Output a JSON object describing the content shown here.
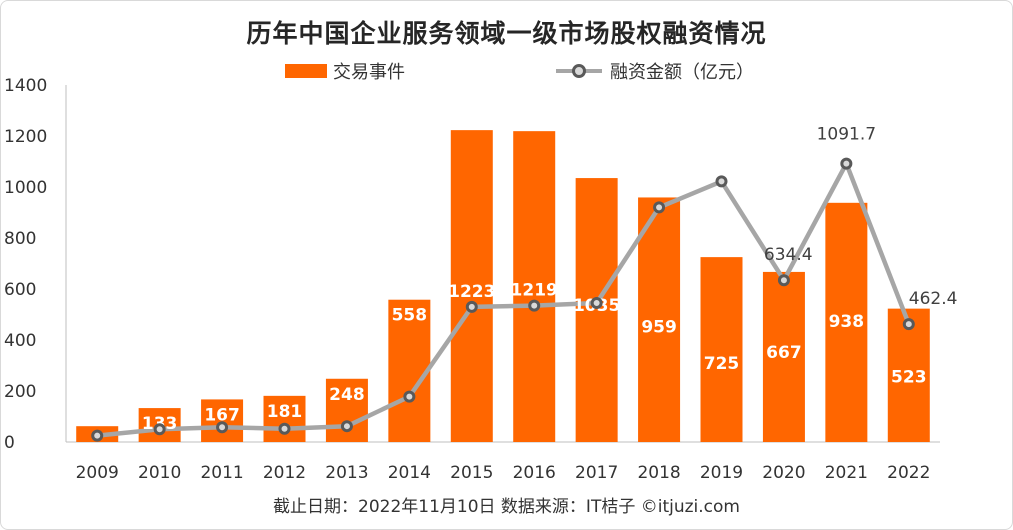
{
  "title": "历年中国企业服务领域一级市场股权融资情况",
  "footer": "截止日期：2022年11月10日   数据来源：IT桔子 ©itjuzi.com",
  "colors": {
    "bar": "#ff6600",
    "line": "#a6a6a6",
    "marker_edge": "#595959",
    "marker_fill": "#d9d9d9",
    "axis": "#bfbfbf"
  },
  "chart_data": {
    "type": "bar",
    "title": "历年中国企业服务领域一级市场股权融资情况",
    "categories": [
      "2009",
      "2010",
      "2011",
      "2012",
      "2013",
      "2014",
      "2015",
      "2016",
      "2017",
      "2018",
      "2019",
      "2020",
      "2021",
      "2022"
    ],
    "ylim": [
      0,
      1400
    ],
    "yticks": [
      "0",
      "200",
      "400",
      "600",
      "800",
      "1000",
      "1200",
      "1400"
    ],
    "legend_position": "top",
    "grid": false,
    "series": [
      {
        "name": "交易事件",
        "type": "bar",
        "values": [
          62,
          133,
          167,
          181,
          248,
          558,
          1223,
          1219,
          1035,
          959,
          725,
          667,
          938,
          523
        ],
        "value_labels": [
          "",
          "133",
          "167",
          "181",
          "248",
          "558",
          "1223",
          "1219",
          "1035",
          "959",
          "725",
          "667",
          "938",
          "523"
        ]
      },
      {
        "name": "融资金额（亿元）",
        "type": "line",
        "values": [
          25,
          50,
          58,
          52,
          62,
          178,
          530,
          535,
          545,
          920,
          1022,
          634.4,
          1091.7,
          462.4
        ],
        "value_labels": [
          "",
          "",
          "",
          "",
          "",
          "",
          "",
          "",
          "",
          "",
          "",
          "634.4",
          "1091.7",
          "462.4"
        ]
      }
    ]
  }
}
